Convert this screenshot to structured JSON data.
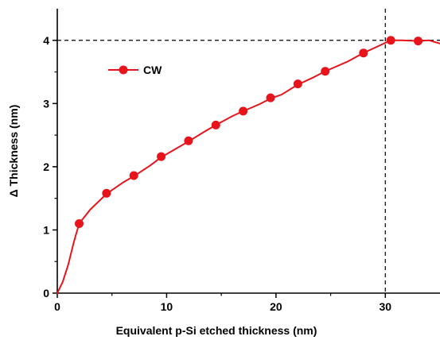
{
  "chart_data": {
    "type": "line",
    "title": "",
    "xlabel": "Equivalent p-Si etched thickness (nm)",
    "ylabel": "Δ Thickness (nm)",
    "xlim": [
      0,
      35
    ],
    "ylim": [
      0,
      4.5
    ],
    "x_ticks": [
      0,
      10,
      20,
      30
    ],
    "y_ticks": [
      0,
      1,
      2,
      3,
      4
    ],
    "x_tick_labels": [
      "0",
      "10",
      "20",
      "30"
    ],
    "y_tick_labels": [
      "0",
      "1",
      "2",
      "3",
      "4"
    ],
    "grid": false,
    "legend": {
      "position": "upper-left",
      "entries": [
        "CW"
      ]
    },
    "series": [
      {
        "name": "CW",
        "color": "#e8141b",
        "marker": "circle",
        "curve": [
          [
            0,
            0
          ],
          [
            0.5,
            0.18
          ],
          [
            1.0,
            0.45
          ],
          [
            1.5,
            0.8
          ],
          [
            2.0,
            1.1
          ],
          [
            3.0,
            1.32
          ],
          [
            4.5,
            1.57
          ],
          [
            6.0,
            1.75
          ],
          [
            7.0,
            1.85
          ],
          [
            8.5,
            2.02
          ],
          [
            9.5,
            2.15
          ],
          [
            11.0,
            2.3
          ],
          [
            12.0,
            2.4
          ],
          [
            13.5,
            2.56
          ],
          [
            14.5,
            2.66
          ],
          [
            16.0,
            2.8
          ],
          [
            17.0,
            2.88
          ],
          [
            18.5,
            2.99
          ],
          [
            19.5,
            3.08
          ],
          [
            20.5,
            3.14
          ],
          [
            22.0,
            3.3
          ],
          [
            23.5,
            3.42
          ],
          [
            24.5,
            3.51
          ],
          [
            26.5,
            3.66
          ],
          [
            28.0,
            3.8
          ],
          [
            29.5,
            3.92
          ],
          [
            30.5,
            4.0
          ],
          [
            31.5,
            4.0
          ],
          [
            33.0,
            3.99
          ],
          [
            34.0,
            4.0
          ],
          [
            35.0,
            3.95
          ]
        ],
        "markers_x": [
          2.0,
          4.5,
          7.0,
          9.5,
          12.0,
          14.5,
          17.0,
          19.5,
          22.0,
          24.5,
          28.0,
          30.5,
          33.0
        ],
        "markers_y": [
          1.1,
          1.58,
          1.86,
          2.16,
          2.41,
          2.66,
          2.88,
          3.09,
          3.31,
          3.51,
          3.8,
          4.0,
          3.99
        ]
      }
    ],
    "reference_lines": {
      "x": 30,
      "y": 4,
      "style": "dashed",
      "color": "#000000"
    }
  }
}
